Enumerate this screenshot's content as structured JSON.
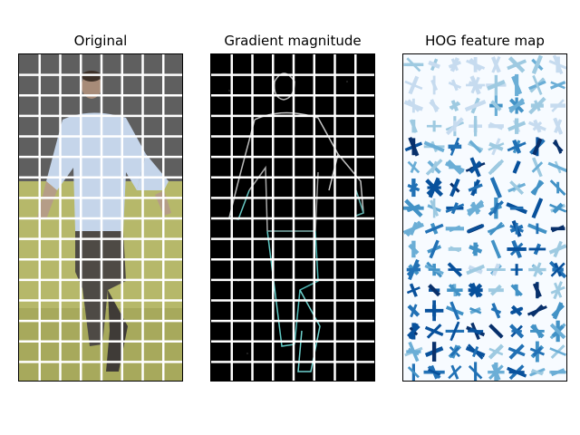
{
  "panels": [
    {
      "title": "Original"
    },
    {
      "title": "Gradient magnitude"
    },
    {
      "title": "HOG feature map"
    }
  ],
  "grid": {
    "cols": 8,
    "rows": 16
  }
}
